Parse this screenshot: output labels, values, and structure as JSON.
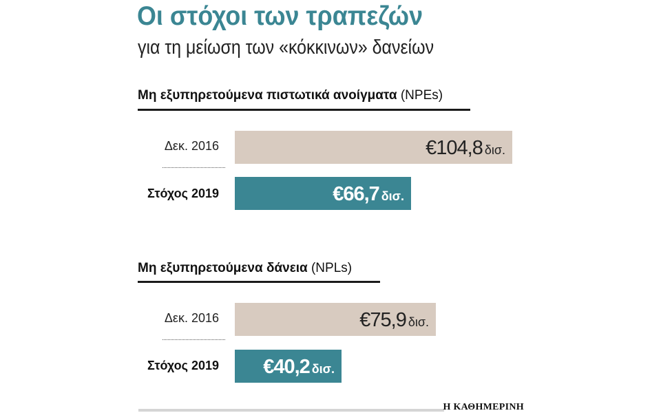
{
  "title": "Οι στόχοι των τραπεζών",
  "subtitle": "για τη μείωση των «κόκκινων» δανείων",
  "source": "Η ΚΑΘΗΜΕΡΙΝΗ",
  "colors": {
    "title": "#3b8693",
    "reference_bar": "#d8cbc0",
    "target_bar": "#3b8693"
  },
  "chart_data": [
    {
      "type": "bar",
      "orientation": "horizontal",
      "title": "Μη εξυπηρετούμενα πιστωτικά ανοίγματα",
      "title_unit": "(NPEs)",
      "categories": [
        "Δεκ. 2016",
        "Στόχος 2019"
      ],
      "values": [
        104.8,
        66.7
      ],
      "value_labels": [
        {
          "amount": "€104,8",
          "unit": "δισ."
        },
        {
          "amount": "€66,7",
          "unit": "δισ."
        }
      ],
      "unit": "δισ. €"
    },
    {
      "type": "bar",
      "orientation": "horizontal",
      "title": "Μη εξυπηρετούμενα δάνεια",
      "title_unit": "(NPLs)",
      "categories": [
        "Δεκ. 2016",
        "Στόχος 2019"
      ],
      "values": [
        75.9,
        40.2
      ],
      "value_labels": [
        {
          "amount": "€75,9",
          "unit": "δισ."
        },
        {
          "amount": "€40,2",
          "unit": "δισ."
        }
      ],
      "unit": "δισ. €"
    }
  ]
}
